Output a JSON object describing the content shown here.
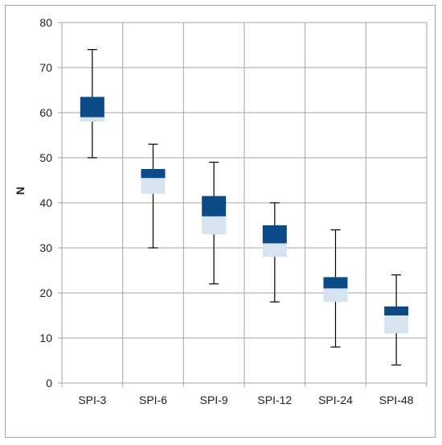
{
  "chart_data": {
    "type": "box",
    "title": "",
    "xlabel": "",
    "ylabel": "N",
    "ylim": [
      0,
      80
    ],
    "ytick_step": 10,
    "grid": true,
    "categories": [
      "SPI-3",
      "SPI-6",
      "SPI-9",
      "SPI-12",
      "SPI-24",
      "SPI-48"
    ],
    "boxes": [
      {
        "min": 50,
        "q1": 58,
        "median": 59,
        "q3": 63.5,
        "max": 74
      },
      {
        "min": 30,
        "q1": 42,
        "median": 45.5,
        "q3": 47.5,
        "max": 53
      },
      {
        "min": 22,
        "q1": 33,
        "median": 37,
        "q3": 41.5,
        "max": 49
      },
      {
        "min": 18,
        "q1": 28,
        "median": 31,
        "q3": 35,
        "max": 40
      },
      {
        "min": 8,
        "q1": 18,
        "median": 21,
        "q3": 23.5,
        "max": 34
      },
      {
        "min": 4,
        "q1": 11,
        "median": 15,
        "q3": 17,
        "max": 24
      }
    ],
    "colors": {
      "upper": "#0b4a86",
      "lower": "#d6e4f1",
      "grid": "#a6a6a6",
      "whisker": "#000000"
    }
  }
}
